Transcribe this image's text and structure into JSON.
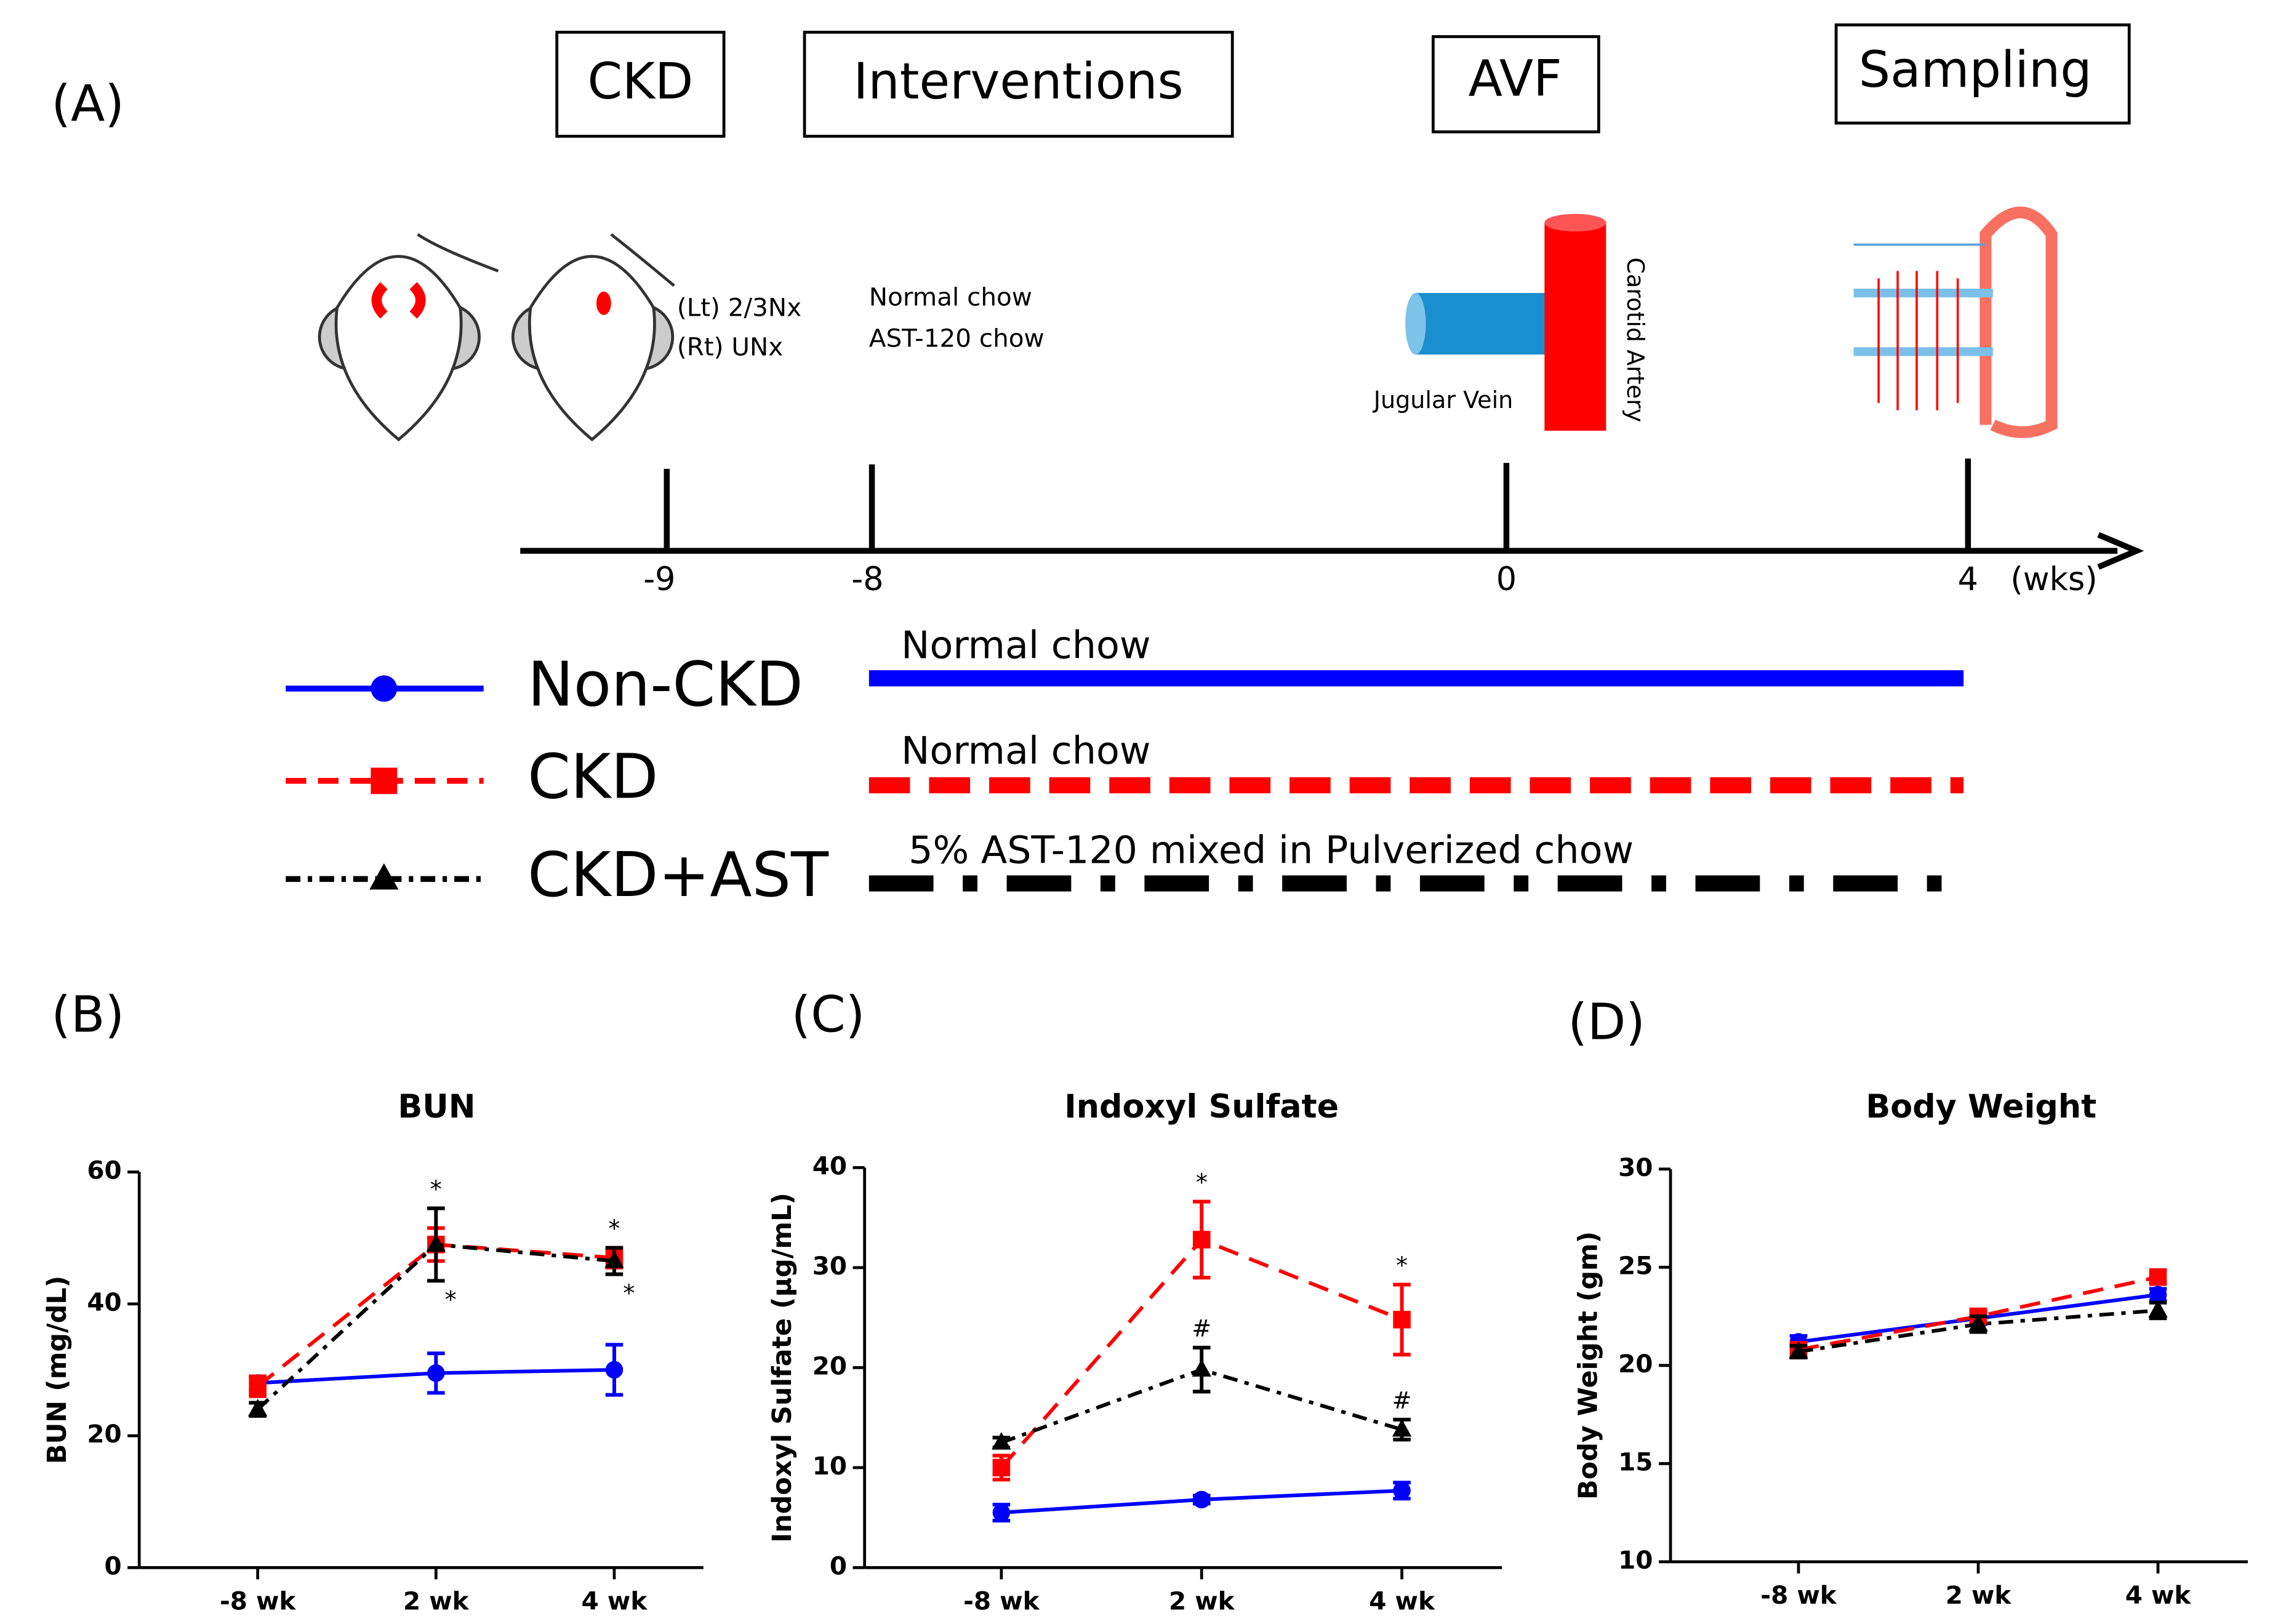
{
  "panel_a": {
    "label": "(A)",
    "stages": [
      "CKD",
      "Interventions",
      "AVF",
      "Sampling"
    ],
    "surgery_notes": [
      "(Lt) 2/3Nx",
      "(Rt) UNx"
    ],
    "diet_notes": [
      "Normal chow",
      "AST-120 chow"
    ],
    "avf_labels": [
      "Jugular Vein",
      "Carotid Artery"
    ],
    "timeline_ticks": [
      "-9",
      "-8",
      "0",
      "4"
    ],
    "timeline_unit": "(wks)",
    "group_diets": [
      "Normal chow",
      "Normal chow",
      "5% AST-120 mixed in Pulverized chow"
    ]
  },
  "chart_data": [
    {
      "type": "line",
      "panel_label": "(B)",
      "title": "BUN",
      "y_label": "BUN (mg/dL)",
      "categories": [
        "-8 wk",
        "2 wk",
        "4 wk"
      ],
      "ylim": [
        0,
        60
      ],
      "yticks": [
        0,
        20,
        40,
        60
      ],
      "series": [
        {
          "name": "Non-CKD",
          "color": "#0000ff",
          "marker": "circle",
          "dash": "solid",
          "values": [
            28,
            29.5,
            30
          ],
          "errors": [
            1,
            3,
            3.8
          ]
        },
        {
          "name": "CKD",
          "color": "#ff0000",
          "marker": "square",
          "dash": "dashed",
          "values": [
            27.5,
            49,
            47
          ],
          "errors": [
            1.5,
            2.5,
            1.5
          ]
        },
        {
          "name": "CKD+AST",
          "color": "#000000",
          "marker": "triangle",
          "dash": "dashdot",
          "values": [
            24,
            49,
            46.5
          ],
          "errors": [
            1,
            5.5,
            2
          ]
        }
      ],
      "annotations": [
        {
          "text": "*",
          "category": 1,
          "series": 2,
          "side": "above"
        },
        {
          "text": "*",
          "category": 1,
          "series": 2,
          "side": "below"
        },
        {
          "text": "*",
          "category": 2,
          "series": 2,
          "side": "above"
        },
        {
          "text": "*",
          "category": 2,
          "series": 2,
          "side": "below"
        }
      ]
    },
    {
      "type": "line",
      "panel_label": "(C)",
      "title": "Indoxyl Sulfate",
      "y_label": "Indoxyl Sulfate (μg/mL)",
      "categories": [
        "-8 wk",
        "2 wk",
        "4 wk"
      ],
      "ylim": [
        0,
        40
      ],
      "yticks": [
        0,
        10,
        20,
        30,
        40
      ],
      "series": [
        {
          "color": "#0000ff",
          "marker": "circle",
          "dash": "solid",
          "values": [
            5.5,
            6.8,
            7.7
          ],
          "errors": [
            0.8,
            0.4,
            0.8
          ]
        },
        {
          "color": "#ff0000",
          "marker": "square",
          "dash": "dashed",
          "values": [
            10,
            32.8,
            24.8
          ],
          "errors": [
            1.2,
            3.8,
            3.5
          ]
        },
        {
          "color": "#000000",
          "marker": "triangle",
          "dash": "dashdot",
          "values": [
            12.5,
            19.8,
            13.8
          ],
          "errors": [
            0.5,
            2.2,
            1
          ]
        }
      ],
      "annotations": [
        {
          "text": "*",
          "category": 1,
          "series": 1,
          "side": "above"
        },
        {
          "text": "#",
          "category": 1,
          "series": 2,
          "side": "above"
        },
        {
          "text": "*",
          "category": 2,
          "series": 1,
          "side": "above"
        },
        {
          "text": "#",
          "category": 2,
          "series": 2,
          "side": "above"
        }
      ]
    },
    {
      "type": "line",
      "panel_label": "(D)",
      "title": "Body Weight",
      "y_label": "Body Weight (gm)",
      "categories": [
        "-8 wk",
        "2 wk",
        "4 wk"
      ],
      "ylim": [
        10,
        30
      ],
      "yticks": [
        10,
        15,
        20,
        25,
        30
      ],
      "series": [
        {
          "color": "#0000ff",
          "marker": "circle",
          "dash": "solid",
          "values": [
            21.2,
            22.4,
            23.6
          ],
          "errors": [
            0.3,
            0.3,
            0.3
          ]
        },
        {
          "color": "#ff0000",
          "marker": "square",
          "dash": "dashed",
          "values": [
            20.8,
            22.5,
            24.5
          ],
          "errors": [
            0.3,
            0.3,
            0.3
          ]
        },
        {
          "color": "#000000",
          "marker": "triangle",
          "dash": "dashdot",
          "values": [
            20.7,
            22.1,
            22.8
          ],
          "errors": [
            0.3,
            0.4,
            0.4
          ]
        }
      ],
      "annotations": []
    }
  ]
}
